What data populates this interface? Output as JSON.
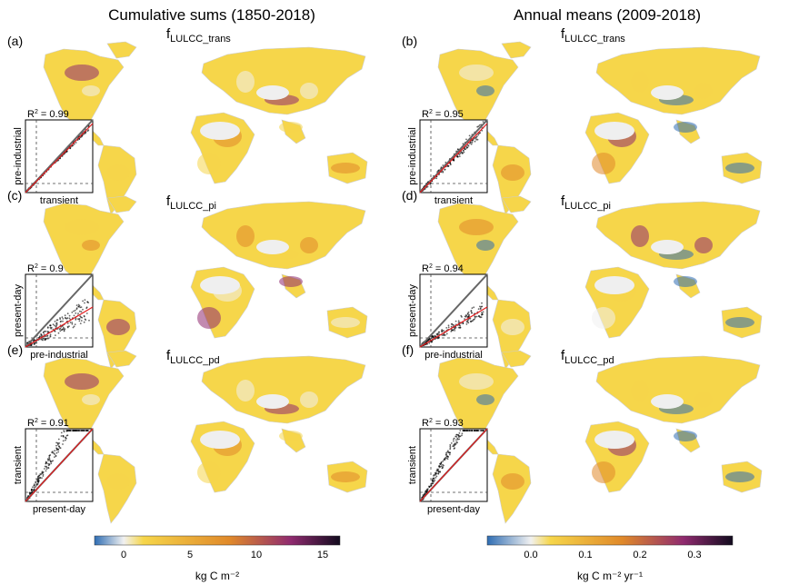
{
  "columns": [
    {
      "title": "Cumulative sums (1850-2018)"
    },
    {
      "title": "Annual means (2009-2018)"
    }
  ],
  "rows": [
    {
      "label_main": "f",
      "label_sub": "LULCC_trans"
    },
    {
      "label_main": "f",
      "label_sub": "LULCC_pi"
    },
    {
      "label_main": "f",
      "label_sub": "LULCC_pd"
    }
  ],
  "panels": [
    {
      "letter": "(a)",
      "r2": "0.99",
      "xlabel": "transient",
      "ylabel": "pre-industrial"
    },
    {
      "letter": "(b)",
      "r2": "0.95",
      "xlabel": "transient",
      "ylabel": "pre-industrial"
    },
    {
      "letter": "(c)",
      "r2": "0.9",
      "xlabel": "pre-industrial",
      "ylabel": "present-day"
    },
    {
      "letter": "(d)",
      "r2": "0.94",
      "xlabel": "pre-industrial",
      "ylabel": "present-day"
    },
    {
      "letter": "(e)",
      "r2": "0.91",
      "xlabel": "present-day",
      "ylabel": "transient"
    },
    {
      "letter": "(f)",
      "r2": "0.93",
      "xlabel": "present-day",
      "ylabel": "transient"
    }
  ],
  "colorbars": [
    {
      "min": -2.2,
      "max": 16.3,
      "ticks": [
        "0",
        "5",
        "10",
        "15"
      ],
      "tick_values": [
        0,
        5,
        10,
        15
      ],
      "unit": "kg C m⁻²"
    },
    {
      "min": -0.08,
      "max": 0.37,
      "ticks": [
        "0.0",
        "0.1",
        "0.2",
        "0.3"
      ],
      "tick_values": [
        0,
        0.1,
        0.2,
        0.3
      ],
      "unit": "kg C m⁻² yr⁻¹"
    }
  ],
  "colors": {
    "negative": "#2f6db3",
    "zero": "#f1f1f1",
    "low": "#f6d64a",
    "mid": "#e0892a",
    "high": "#8f2a6f",
    "max": "#120b1e",
    "one_to_one_line": "#666666",
    "regression_line": "#e41a1c",
    "scatter_points": "#000000"
  },
  "chart_data": [
    {
      "type": "heatmap",
      "panel": "(a)",
      "title": "fLULCC_trans",
      "r2": 0.99,
      "inset": {
        "type": "scatter",
        "xlabel": "transient",
        "ylabel": "pre-industrial"
      }
    },
    {
      "type": "heatmap",
      "panel": "(b)",
      "title": "fLULCC_trans",
      "r2": 0.95,
      "inset": {
        "type": "scatter",
        "xlabel": "transient",
        "ylabel": "pre-industrial"
      }
    },
    {
      "type": "heatmap",
      "panel": "(c)",
      "title": "fLULCC_pi",
      "r2": 0.9,
      "inset": {
        "type": "scatter",
        "xlabel": "pre-industrial",
        "ylabel": "present-day"
      }
    },
    {
      "type": "heatmap",
      "panel": "(d)",
      "title": "fLULCC_pi",
      "r2": 0.94,
      "inset": {
        "type": "scatter",
        "xlabel": "pre-industrial",
        "ylabel": "present-day"
      }
    },
    {
      "type": "heatmap",
      "panel": "(e)",
      "title": "fLULCC_pd",
      "r2": 0.91,
      "inset": {
        "type": "scatter",
        "xlabel": "present-day",
        "ylabel": "transient"
      }
    },
    {
      "type": "heatmap",
      "panel": "(f)",
      "title": "fLULCC_pd",
      "r2": 0.93,
      "inset": {
        "type": "scatter",
        "xlabel": "present-day",
        "ylabel": "transient"
      }
    }
  ]
}
